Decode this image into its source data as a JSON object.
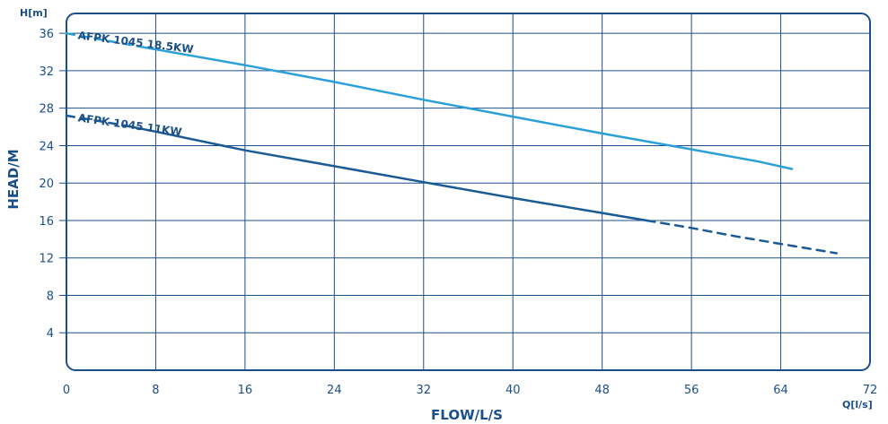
{
  "chart_data": {
    "type": "line",
    "x_unit_label": "Q[l/s]",
    "y_unit_label": "H[m]",
    "xlabel": "FLOW/L/S",
    "ylabel": "HEAD/M",
    "xlim": [
      0,
      72
    ],
    "ylim": [
      0,
      38
    ],
    "x_ticks": [
      "0",
      "8",
      "16",
      "24",
      "32",
      "40",
      "48",
      "56",
      "64",
      "72"
    ],
    "y_ticks": [
      "4",
      "8",
      "12",
      "16",
      "20",
      "24",
      "28",
      "32",
      "36"
    ],
    "grid": true,
    "series": [
      {
        "name": "AFPK 1045 18.5KW",
        "color": "#2a9fd8",
        "label_rotation_deg": 7,
        "label_anchor": [
          1,
          35.4
        ],
        "dashed": {
          "x": [
            0,
            6.5
          ],
          "y": [
            36.0,
            34.6
          ]
        },
        "solid": {
          "x": [
            6.5,
            16,
            24,
            32,
            40,
            48,
            56,
            62,
            65
          ],
          "y": [
            34.6,
            32.6,
            30.8,
            28.9,
            27.1,
            25.3,
            23.6,
            22.3,
            21.5
          ]
        }
      },
      {
        "name": "AFPK 1045 11KW",
        "color": "#1a5a96",
        "label_rotation_deg": 8,
        "label_anchor": [
          1,
          26.6
        ],
        "dashed_start": {
          "x": [
            0,
            5
          ],
          "y": [
            27.2,
            26.2
          ]
        },
        "solid": {
          "x": [
            5,
            8,
            16,
            24,
            32,
            40,
            48,
            52
          ],
          "y": [
            26.2,
            25.5,
            23.5,
            21.8,
            20.1,
            18.4,
            16.8,
            16.0
          ]
        },
        "dashed_end": {
          "x": [
            52,
            56,
            60,
            64,
            69
          ],
          "y": [
            16.0,
            15.2,
            14.3,
            13.5,
            12.5
          ]
        }
      }
    ]
  },
  "colors": {
    "frame": "#1b4f8a",
    "grid": "#1b4f8a",
    "text": "#1b4f8a"
  }
}
